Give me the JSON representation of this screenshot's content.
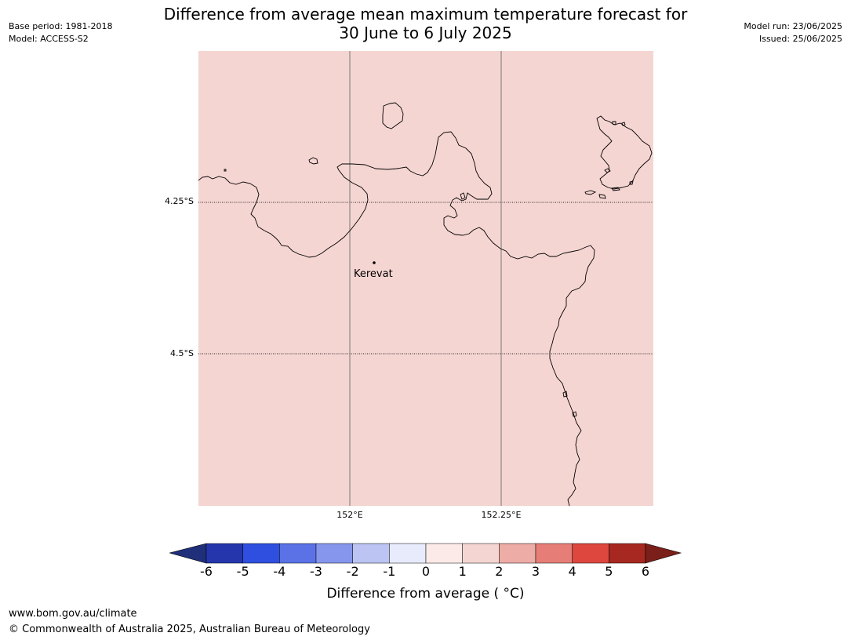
{
  "title": "Difference from average mean maximum temperature forecast for\n30 June to 6 July 2025",
  "meta_left": {
    "base_period": "Base period: 1981-2018",
    "model": "Model: ACCESS-S2"
  },
  "meta_right": {
    "model_run": "Model run: 23/06/2025",
    "issued": "Issued: 25/06/2025"
  },
  "map": {
    "fill_color": "#f5d5d2",
    "latitudes": [
      {
        "label": "4.25°S",
        "value": -4.25
      },
      {
        "label": "4.5°S",
        "value": -4.5
      }
    ],
    "longitudes": [
      {
        "label": "152°E",
        "value": 152.0
      },
      {
        "label": "152.25°E",
        "value": 152.25
      }
    ],
    "places": [
      {
        "name": "Kerevat",
        "lat": -4.35,
        "lon": 152.04
      }
    ]
  },
  "colorbar": {
    "title": "Difference from average ( °C)",
    "ticks": [
      "-6",
      "-5",
      "-4",
      "-3",
      "-2",
      "-1",
      "0",
      "1",
      "2",
      "3",
      "4",
      "5",
      "6"
    ],
    "under_color": "#1f2f7a",
    "over_color": "#7a1f1a",
    "colors": [
      "#2536ad",
      "#2f4fe0",
      "#5a72e6",
      "#8596ec",
      "#bcc4f3",
      "#e8ebfb",
      "#fbeae8",
      "#f5d5d2",
      "#eeaca6",
      "#e67e77",
      "#dd473e",
      "#a72820"
    ]
  },
  "footer": {
    "url": "www.bom.gov.au/climate",
    "copyright": "© Commonwealth of Australia 2025, Australian Bureau of Meteorology"
  }
}
